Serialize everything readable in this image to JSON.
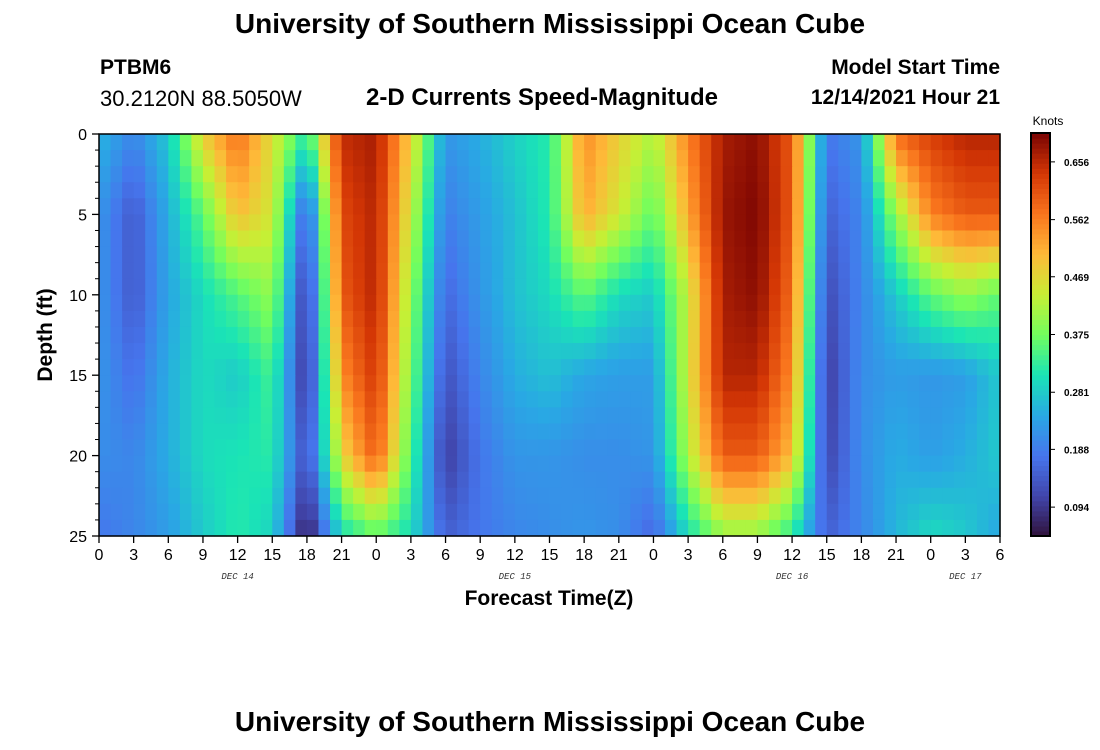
{
  "header": {
    "title": "University of Southern Mississippi Ocean Cube",
    "station": "PTBM6",
    "coords": "30.2120N  88.5050W",
    "subtitle": "2-D Currents Speed-Magnitude",
    "start_label": "Model Start Time",
    "start_value": "12/14/2021 Hour 21"
  },
  "footer": {
    "title": "University of Southern Mississippi Ocean Cube"
  },
  "chart_data": {
    "type": "heatmap",
    "title": "2-D Currents Speed-Magnitude",
    "xlabel": "Forecast Time(Z)",
    "ylabel": "Depth (ft)",
    "x_range_hours": [
      0,
      78
    ],
    "y_range": [
      0,
      25
    ],
    "y_ticks": [
      0,
      5,
      10,
      15,
      20,
      25
    ],
    "x_ticks": [
      {
        "h": 0,
        "label": "0"
      },
      {
        "h": 3,
        "label": "3"
      },
      {
        "h": 6,
        "label": "6"
      },
      {
        "h": 9,
        "label": "9"
      },
      {
        "h": 12,
        "label": "12"
      },
      {
        "h": 15,
        "label": "15"
      },
      {
        "h": 18,
        "label": "18"
      },
      {
        "h": 21,
        "label": "21"
      },
      {
        "h": 24,
        "label": "0"
      },
      {
        "h": 27,
        "label": "3"
      },
      {
        "h": 30,
        "label": "6"
      },
      {
        "h": 33,
        "label": "9"
      },
      {
        "h": 36,
        "label": "12"
      },
      {
        "h": 39,
        "label": "15"
      },
      {
        "h": 42,
        "label": "18"
      },
      {
        "h": 45,
        "label": "21"
      },
      {
        "h": 48,
        "label": "0"
      },
      {
        "h": 51,
        "label": "3"
      },
      {
        "h": 54,
        "label": "6"
      },
      {
        "h": 57,
        "label": "9"
      },
      {
        "h": 60,
        "label": "12"
      },
      {
        "h": 63,
        "label": "15"
      },
      {
        "h": 66,
        "label": "18"
      },
      {
        "h": 69,
        "label": "21"
      },
      {
        "h": 72,
        "label": "0"
      },
      {
        "h": 75,
        "label": "3"
      },
      {
        "h": 78,
        "label": "6"
      }
    ],
    "date_labels": [
      {
        "h": 12,
        "label": "DEC 14"
      },
      {
        "h": 36,
        "label": "DEC 15"
      },
      {
        "h": 60,
        "label": "DEC 16"
      },
      {
        "h": 75,
        "label": "DEC 17"
      }
    ],
    "colorbar": {
      "title": "Knots",
      "min": 0.047,
      "max": 0.703,
      "ticks": [
        0.094,
        0.188,
        0.281,
        0.375,
        0.469,
        0.562,
        0.656
      ]
    },
    "grid_hours": [
      0,
      3,
      6,
      9,
      12,
      15,
      18,
      21,
      24,
      27,
      30,
      33,
      36,
      39,
      42,
      45,
      48,
      51,
      54,
      57,
      60,
      63,
      66,
      69,
      72,
      75,
      78
    ],
    "grid_depths": [
      0,
      5,
      10,
      15,
      20,
      25
    ],
    "values": [
      [
        0.26,
        0.2,
        0.28,
        0.48,
        0.58,
        0.46,
        0.32,
        0.65,
        0.67,
        0.48,
        0.22,
        0.25,
        0.29,
        0.32,
        0.55,
        0.48,
        0.42,
        0.56,
        0.67,
        0.69,
        0.6,
        0.18,
        0.22,
        0.58,
        0.63,
        0.66,
        0.66
      ],
      [
        0.22,
        0.14,
        0.25,
        0.36,
        0.5,
        0.45,
        0.14,
        0.62,
        0.66,
        0.44,
        0.19,
        0.23,
        0.27,
        0.32,
        0.52,
        0.45,
        0.36,
        0.52,
        0.68,
        0.7,
        0.6,
        0.15,
        0.2,
        0.4,
        0.56,
        0.6,
        0.6
      ],
      [
        0.22,
        0.14,
        0.24,
        0.3,
        0.35,
        0.4,
        0.09,
        0.6,
        0.66,
        0.4,
        0.16,
        0.22,
        0.27,
        0.3,
        0.36,
        0.3,
        0.28,
        0.44,
        0.67,
        0.69,
        0.58,
        0.12,
        0.2,
        0.28,
        0.36,
        0.4,
        0.36
      ],
      [
        0.22,
        0.17,
        0.25,
        0.3,
        0.28,
        0.34,
        0.08,
        0.55,
        0.64,
        0.38,
        0.13,
        0.2,
        0.25,
        0.27,
        0.24,
        0.23,
        0.23,
        0.45,
        0.66,
        0.66,
        0.55,
        0.1,
        0.21,
        0.23,
        0.22,
        0.23,
        0.28
      ],
      [
        0.21,
        0.2,
        0.25,
        0.3,
        0.31,
        0.32,
        0.12,
        0.47,
        0.6,
        0.35,
        0.1,
        0.18,
        0.22,
        0.22,
        0.21,
        0.21,
        0.22,
        0.42,
        0.6,
        0.6,
        0.5,
        0.11,
        0.21,
        0.25,
        0.23,
        0.25,
        0.28
      ],
      [
        0.18,
        0.2,
        0.23,
        0.28,
        0.32,
        0.29,
        0.05,
        0.3,
        0.36,
        0.3,
        0.15,
        0.18,
        0.2,
        0.21,
        0.22,
        0.21,
        0.16,
        0.3,
        0.4,
        0.4,
        0.32,
        0.15,
        0.2,
        0.26,
        0.3,
        0.28,
        0.24
      ]
    ]
  }
}
